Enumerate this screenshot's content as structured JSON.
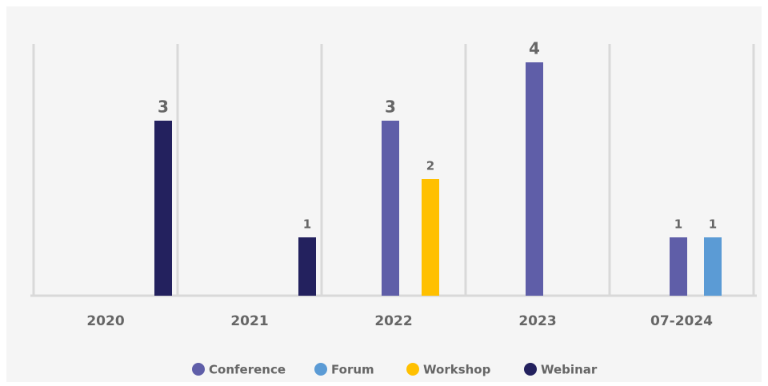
{
  "chart_data": {
    "type": "bar",
    "categories": [
      "2020",
      "2021",
      "2022",
      "2023",
      "07-2024"
    ],
    "series": [
      {
        "name": "Conference",
        "color": "#5f5ea8",
        "values": [
          null,
          null,
          3,
          4,
          1
        ]
      },
      {
        "name": "Forum",
        "color": "#5b9bd5",
        "values": [
          null,
          null,
          null,
          null,
          1
        ]
      },
      {
        "name": "Workshop",
        "color": "#ffc000",
        "values": [
          null,
          null,
          2,
          null,
          null
        ]
      },
      {
        "name": "Webinar",
        "color": "#23215e",
        "values": [
          3,
          1,
          null,
          null,
          null
        ]
      }
    ],
    "ylim": [
      0,
      4
    ],
    "legend": "bottom"
  }
}
